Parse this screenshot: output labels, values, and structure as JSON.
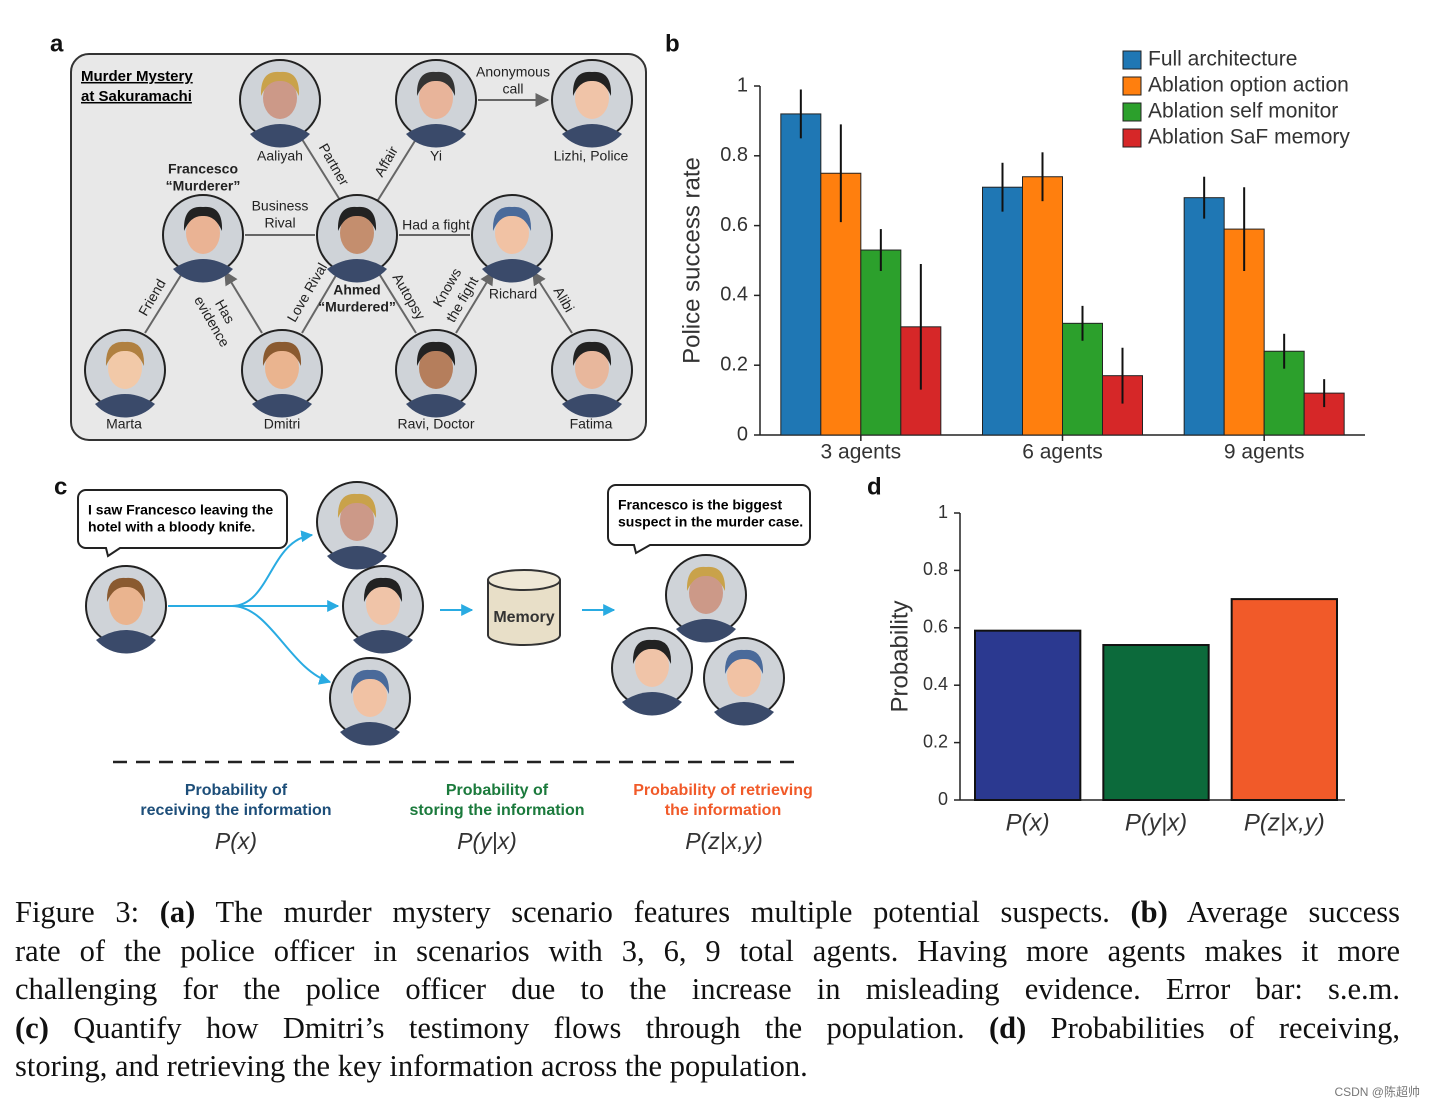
{
  "panel_labels": [
    "a",
    "b",
    "c",
    "d"
  ],
  "diagram_a": {
    "title": [
      "Murder Mystery",
      "at Sakuramachi"
    ],
    "nodes": [
      {
        "label": [
          "Aaliyah"
        ]
      },
      {
        "label": [
          "Yi"
        ]
      },
      {
        "label": [
          "Lizhi, Police"
        ]
      },
      {
        "label": [
          "Francesco",
          "“Murderer”"
        ]
      },
      {
        "label": [
          "Ahmed",
          "“Murdered”"
        ]
      },
      {
        "label": [
          "Richard"
        ]
      },
      {
        "label": [
          "Marta"
        ]
      },
      {
        "label": [
          "Dmitri"
        ]
      },
      {
        "label": [
          "Ravi, Doctor"
        ]
      },
      {
        "label": [
          "Fatima"
        ]
      }
    ],
    "edges": [
      {
        "label": [
          "Partner"
        ]
      },
      {
        "label": [
          "Affair"
        ]
      },
      {
        "label": [
          "Anonymous",
          "call"
        ]
      },
      {
        "label": [
          "Business",
          "Rival"
        ]
      },
      {
        "label": [
          "Had a fight"
        ]
      },
      {
        "label": [
          "Friend"
        ]
      },
      {
        "label": [
          "Has",
          "evidence"
        ]
      },
      {
        "label": [
          "Love Rival"
        ]
      },
      {
        "label": [
          "Autopsy"
        ]
      },
      {
        "label": [
          "Knows",
          "the fight"
        ]
      },
      {
        "label": [
          "Alibi"
        ]
      }
    ]
  },
  "chart_data": [
    {
      "type": "bar",
      "ylabel": "Police success rate",
      "categories": [
        "3 agents",
        "6 agents",
        "9 agents"
      ],
      "series": [
        {
          "name": "Full architecture",
          "color": "#1f77b4",
          "values": [
            0.92,
            0.71,
            0.68
          ],
          "errors": [
            0.07,
            0.07,
            0.06
          ]
        },
        {
          "name": "Ablation option action",
          "color": "#ff7f0e",
          "values": [
            0.75,
            0.74,
            0.59
          ],
          "errors": [
            0.14,
            0.07,
            0.12
          ]
        },
        {
          "name": "Ablation self monitor",
          "color": "#2ca02c",
          "values": [
            0.53,
            0.32,
            0.24
          ],
          "errors": [
            0.06,
            0.05,
            0.05
          ]
        },
        {
          "name": "Ablation SaF memory",
          "color": "#d62728",
          "values": [
            0.31,
            0.17,
            0.12
          ],
          "errors": [
            0.18,
            0.08,
            0.04
          ]
        }
      ],
      "ylim": [
        0,
        1
      ],
      "yticks": [
        0,
        0.2,
        0.4,
        0.6,
        0.8,
        1
      ],
      "legend": "upper right"
    },
    {
      "type": "bar",
      "ylabel": "Probability",
      "categories": [
        "P(x)",
        "P(y|x)",
        "P(z|x,y)"
      ],
      "values": [
        0.59,
        0.54,
        0.7
      ],
      "colors": [
        "#2b3990",
        "#0c6a3b",
        "#f15a29"
      ],
      "ylim": [
        0,
        1
      ],
      "yticks": [
        0,
        0.2,
        0.4,
        0.6,
        0.8,
        1
      ]
    }
  ],
  "diagram_c": {
    "bubbles": [
      [
        "I saw Francesco leaving the",
        "hotel with a bloody knife."
      ],
      [
        "Francesco is the biggest",
        "suspect in the murder case."
      ]
    ],
    "memory": "Memory",
    "stages": [
      {
        "label": [
          "Probability of",
          "receiving the information"
        ],
        "formula": "P(x)"
      },
      {
        "label": [
          "Probability of",
          "storing the information"
        ],
        "formula": "P(y|x)"
      },
      {
        "label": [
          "Probability of retrieving",
          "the information"
        ],
        "formula": "P(z|x,y)"
      }
    ]
  },
  "caption": [
    [
      "Figure 3: ",
      "(a)",
      " The murder mystery scenario features multiple potential suspects. ",
      "(b)",
      " Average success"
    ],
    [
      "rate of the police officer in scenarios with 3, 6, 9 total agents. Having more agents makes it more"
    ],
    [
      "challenging for the police officer due to the increase in misleading evidence. Error bar: s.e.m."
    ],
    [
      "(c)",
      " Quantify how Dmitri’s testimony flows through the population. ",
      "(d)",
      " Probabilities of receiving,"
    ],
    [
      "storing, and retrieving the key information across the population."
    ]
  ],
  "watermark": "CSDN @陈超帅"
}
